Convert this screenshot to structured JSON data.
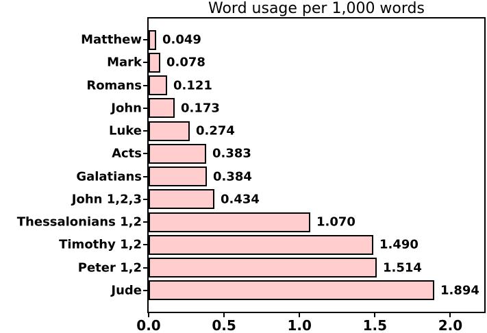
{
  "chart_data": {
    "type": "bar",
    "orientation": "horizontal",
    "title": "Word usage per 1,000 words",
    "categories": [
      "Matthew",
      "Mark",
      "Romans",
      "John",
      "Luke",
      "Acts",
      "Galatians",
      "John 1,2,3",
      "Thessalonians 1,2",
      "Timothy 1,2",
      "Peter 1,2",
      "Jude"
    ],
    "values": [
      0.049,
      0.078,
      0.121,
      0.173,
      0.274,
      0.383,
      0.384,
      0.434,
      1.07,
      1.49,
      1.514,
      1.894
    ],
    "value_labels": [
      "0.049",
      "0.078",
      "0.121",
      "0.173",
      "0.274",
      "0.383",
      "0.384",
      "0.434",
      "1.070",
      "1.490",
      "1.514",
      "1.894"
    ],
    "xlabel": "",
    "ylabel": "",
    "xlim": [
      0,
      2.225
    ],
    "x_ticks": [
      0.0,
      0.5,
      1.0,
      1.5,
      2.0
    ],
    "x_tick_labels": [
      "0.0",
      "0.5",
      "1.0",
      "1.5",
      "2.0"
    ],
    "bar_color": "#ffcdcd",
    "bar_border_color": "#000000",
    "grid": false,
    "legend": false
  }
}
